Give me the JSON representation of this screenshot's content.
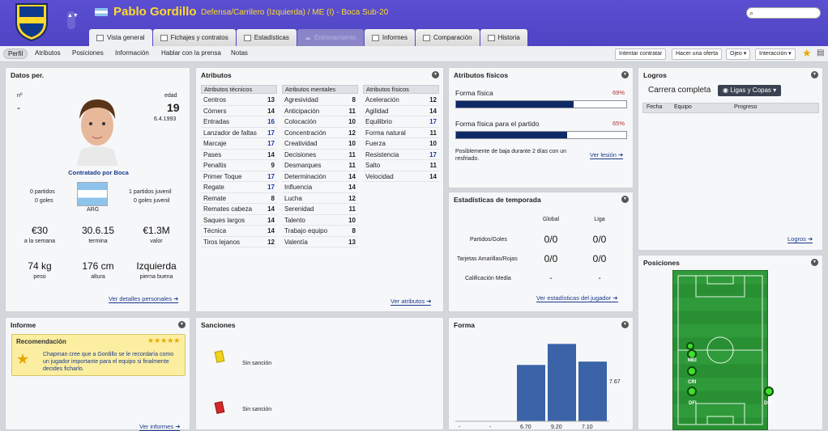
{
  "header": {
    "name": "Pablo Gordillo",
    "description": "Defensa/Carrilero (Izquierda) / ME (I) - Boca Sub-20",
    "search_placeholder": "",
    "updown": "▲▼",
    "crest_colors": [
      "#0d3a8c",
      "#ffd92b"
    ]
  },
  "tabs": [
    {
      "label": "Vista general"
    },
    {
      "label": "Fichajes y contratos"
    },
    {
      "label": "Estadísticas"
    },
    {
      "label": "Entrenamiento"
    },
    {
      "label": "Informes"
    },
    {
      "label": "Comparación"
    },
    {
      "label": "Historia"
    }
  ],
  "subnav": {
    "items": [
      "Perfil",
      "Atributos",
      "Posiciones",
      "Información",
      "Hablar con la prensa",
      "Notas"
    ],
    "actions": [
      "Intentar contratar",
      "Hacer una oferta",
      "Ojeo ▾",
      "Interacción ▾"
    ]
  },
  "datos": {
    "title": "Datos per.",
    "num_label": "nº",
    "num_value": "-",
    "age_label": "edad",
    "age_value": "19",
    "dob": "6.4.1993",
    "contract": "Contratado por Boca",
    "left_stats": [
      "0 partidos",
      "0 goles"
    ],
    "right_stats": [
      "1 partidos juvenil",
      "0 goles juvenil"
    ],
    "nation": "ARG",
    "wage": "€30",
    "wage_label": "a la semana",
    "expires": "30.6.15",
    "expires_label": "termina",
    "value": "€1.3M",
    "value_label": "valor",
    "weight": "74 kg",
    "weight_label": "peso",
    "height": "176 cm",
    "height_label": "altura",
    "foot": "Izquierda",
    "foot_label": "pierna buena",
    "link": "Ver detalles personales"
  },
  "atributos": {
    "title": "Atributos",
    "link": "Ver atributos",
    "tecnicos": {
      "header": "Atributos técnicos",
      "rows": [
        [
          "Centros",
          "13"
        ],
        [
          "Córners",
          "14"
        ],
        [
          "Entradas",
          "16"
        ],
        [
          "Lanzador de faltas",
          "17"
        ],
        [
          "Marcaje",
          "17"
        ],
        [
          "Pases",
          "14"
        ],
        [
          "Penaltis",
          "9"
        ],
        [
          "Primer Toque",
          "17"
        ],
        [
          "Regate",
          "17"
        ],
        [
          "Remate",
          "8"
        ],
        [
          "Remates cabeza",
          "14"
        ],
        [
          "Saques largos",
          "14"
        ],
        [
          "Técnica",
          "14"
        ],
        [
          "Tiros lejanos",
          "12"
        ]
      ]
    },
    "mentales": {
      "header": "Atributos mentales",
      "rows": [
        [
          "Agresividad",
          "8"
        ],
        [
          "Anticipación",
          "11"
        ],
        [
          "Colocación",
          "10"
        ],
        [
          "Concentración",
          "12"
        ],
        [
          "Creatividad",
          "10"
        ],
        [
          "Decisiones",
          "11"
        ],
        [
          "Desmarques",
          "11"
        ],
        [
          "Determinación",
          "14"
        ],
        [
          "Influencia",
          "14"
        ],
        [
          "Lucha",
          "12"
        ],
        [
          "Serenidad",
          "11"
        ],
        [
          "Talento",
          "10"
        ],
        [
          "Trabajo equipo",
          "8"
        ],
        [
          "Valentía",
          "13"
        ]
      ]
    },
    "fisicos": {
      "header": "Atributos físicos",
      "rows": [
        [
          "Aceleración",
          "12"
        ],
        [
          "Agilidad",
          "14"
        ],
        [
          "Equilibrio",
          "17"
        ],
        [
          "Forma natural",
          "11"
        ],
        [
          "Fuerza",
          "10"
        ],
        [
          "Resistencia",
          "17"
        ],
        [
          "Salto",
          "11"
        ],
        [
          "Velocidad",
          "14"
        ]
      ]
    }
  },
  "fisicos": {
    "title": "Atributos físicos",
    "forma_label": "Forma física",
    "forma_value": "69%",
    "forma_pct": 69,
    "partido_label": "Forma física para el partido",
    "partido_value": "65%",
    "partido_pct": 65,
    "note": "Posiblemente de baja durante 2 días con un resfriado.",
    "link": "Ver lesión"
  },
  "temporada": {
    "title": "Estadísticas de temporada",
    "cols": [
      "Global",
      "Liga"
    ],
    "rows": [
      [
        "Partidos/Goles",
        "0/0",
        "0/0"
      ],
      [
        "Tarjetas Amarillas/Rojas",
        "0/0",
        "0/0"
      ],
      [
        "Calificación Media",
        "-",
        "-"
      ]
    ],
    "link": "Ver estadísticas del jugador"
  },
  "logros": {
    "title": "Logros",
    "tab": "Carrera completa",
    "dropdown": "Ligas y Copas",
    "cols": [
      "Fecha",
      "Equipo",
      "Progreso"
    ],
    "link": "Logros"
  },
  "posiciones": {
    "title": "Posiciones",
    "players": [
      {
        "label": "MEI"
      },
      {
        "label": "CRI"
      },
      {
        "label": "DFI"
      },
      {
        "label": "DFD"
      }
    ]
  },
  "informe": {
    "title": "Informe",
    "heading": "Recomendación",
    "stars": "★★★★★",
    "text": "Chapman cree que a Gordillo se le recordaría como un jugador importante para el equipo si finalmente decides ficharlo.",
    "link": "Ver informes"
  },
  "sanciones": {
    "title": "Sanciones",
    "yellow": "Sin sanción",
    "red": "Sin sanción"
  },
  "forma": {
    "title": "Forma",
    "label_right": "7.67"
  },
  "chart_data": {
    "type": "bar",
    "categories": [
      "-",
      "-",
      "6.70",
      "9.20",
      "7.10"
    ],
    "values": [
      0,
      0,
      6.7,
      9.2,
      7.1
    ],
    "ylim": [
      0,
      10
    ]
  }
}
